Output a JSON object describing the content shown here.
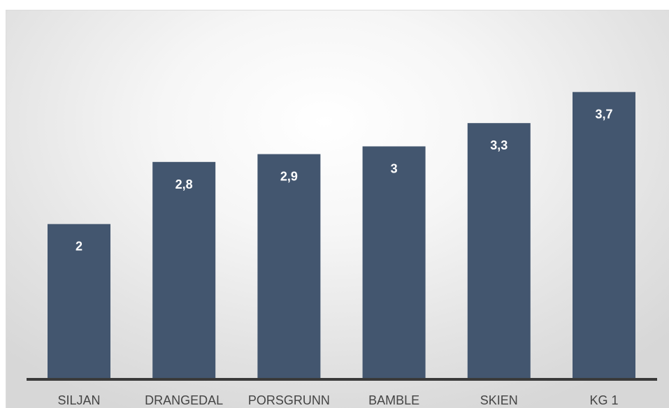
{
  "chart_data": {
    "type": "bar",
    "categories": [
      "SILJAN",
      "DRANGEDAL",
      "PORSGRUNN",
      "BAMBLE",
      "SKIEN",
      "KG 1"
    ],
    "values": [
      2,
      2.8,
      2.9,
      3,
      3.3,
      3.7
    ],
    "value_labels": [
      "2",
      "2,8",
      "2,9",
      "3",
      "3,3",
      "3,7"
    ],
    "title": "",
    "xlabel": "",
    "ylabel": "",
    "ylim": [
      0,
      4.75
    ],
    "grid": false,
    "legend": "none",
    "bar_color": "#43566f",
    "data_label_color": "#ffffff"
  }
}
